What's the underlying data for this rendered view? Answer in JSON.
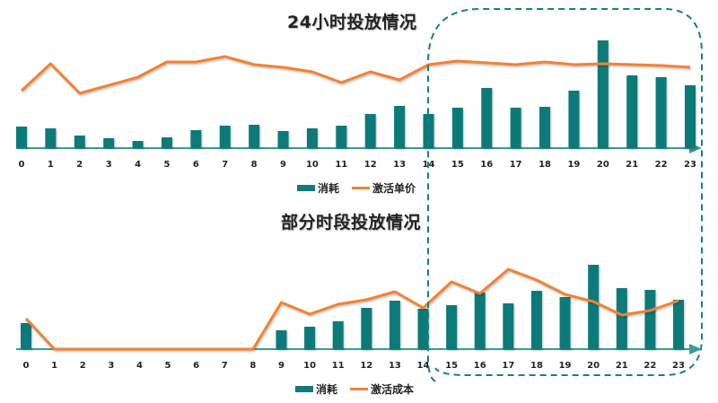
{
  "colors": {
    "bar": "#117a7a",
    "line": "#f08236",
    "axis": "#3b9a9a",
    "highlight_box": "#1a7f7f"
  },
  "chart_data": [
    {
      "type": "bar+line",
      "title": "24小时投放情况",
      "categories": [
        "0",
        "1",
        "2",
        "3",
        "4",
        "5",
        "6",
        "7",
        "8",
        "9",
        "10",
        "11",
        "12",
        "13",
        "14",
        "15",
        "16",
        "17",
        "18",
        "19",
        "20",
        "21",
        "22",
        "23"
      ],
      "series": [
        {
          "name": "消耗",
          "type": "bar",
          "values": [
            24,
            22,
            14,
            11,
            8,
            12,
            20,
            25,
            26,
            19,
            22,
            25,
            38,
            47,
            38,
            45,
            67,
            45,
            46,
            64,
            120,
            81,
            79,
            70
          ]
        },
        {
          "name": "激活单价",
          "type": "line",
          "values": [
            64,
            94,
            61,
            70,
            79,
            96,
            96,
            102,
            93,
            90,
            85,
            73,
            85,
            76,
            93,
            97,
            95,
            93,
            96,
            93,
            94,
            93,
            92,
            90
          ]
        }
      ],
      "xlabel": "",
      "ylabel": "",
      "grid": false,
      "legend_position": "bottom",
      "annotation": "dashed rounded box highlighting hours 14–23"
    },
    {
      "type": "bar+line",
      "title": "部分时段投放情况",
      "categories": [
        "0",
        "1",
        "2",
        "3",
        "4",
        "5",
        "6",
        "7",
        "8",
        "9",
        "10",
        "11",
        "12",
        "13",
        "14",
        "15",
        "16",
        "17",
        "18",
        "19",
        "20",
        "21",
        "22",
        "23"
      ],
      "series": [
        {
          "name": "消耗",
          "type": "bar",
          "values": [
            29,
            0,
            0,
            0,
            0,
            0,
            0,
            0,
            0,
            21,
            25,
            31,
            46,
            54,
            45,
            49,
            63,
            51,
            65,
            58,
            94,
            68,
            66,
            55
          ]
        },
        {
          "name": "激活成本",
          "type": "line",
          "values": [
            34,
            0,
            0,
            0,
            0,
            0,
            0,
            0,
            0,
            52,
            39,
            50,
            55,
            64,
            46,
            75,
            62,
            89,
            77,
            61,
            53,
            38,
            43,
            54
          ]
        }
      ],
      "xlabel": "",
      "ylabel": "",
      "grid": false,
      "legend_position": "bottom",
      "annotation": "dashed rounded box highlighting hours 14–23"
    }
  ],
  "charts": {
    "top": {
      "title": "24小时投放情况",
      "legend_bar": "消耗",
      "legend_line": "激活单价"
    },
    "bottom": {
      "title": "部分时段投放情况",
      "legend_bar": "消耗",
      "legend_line": "激活成本"
    }
  }
}
